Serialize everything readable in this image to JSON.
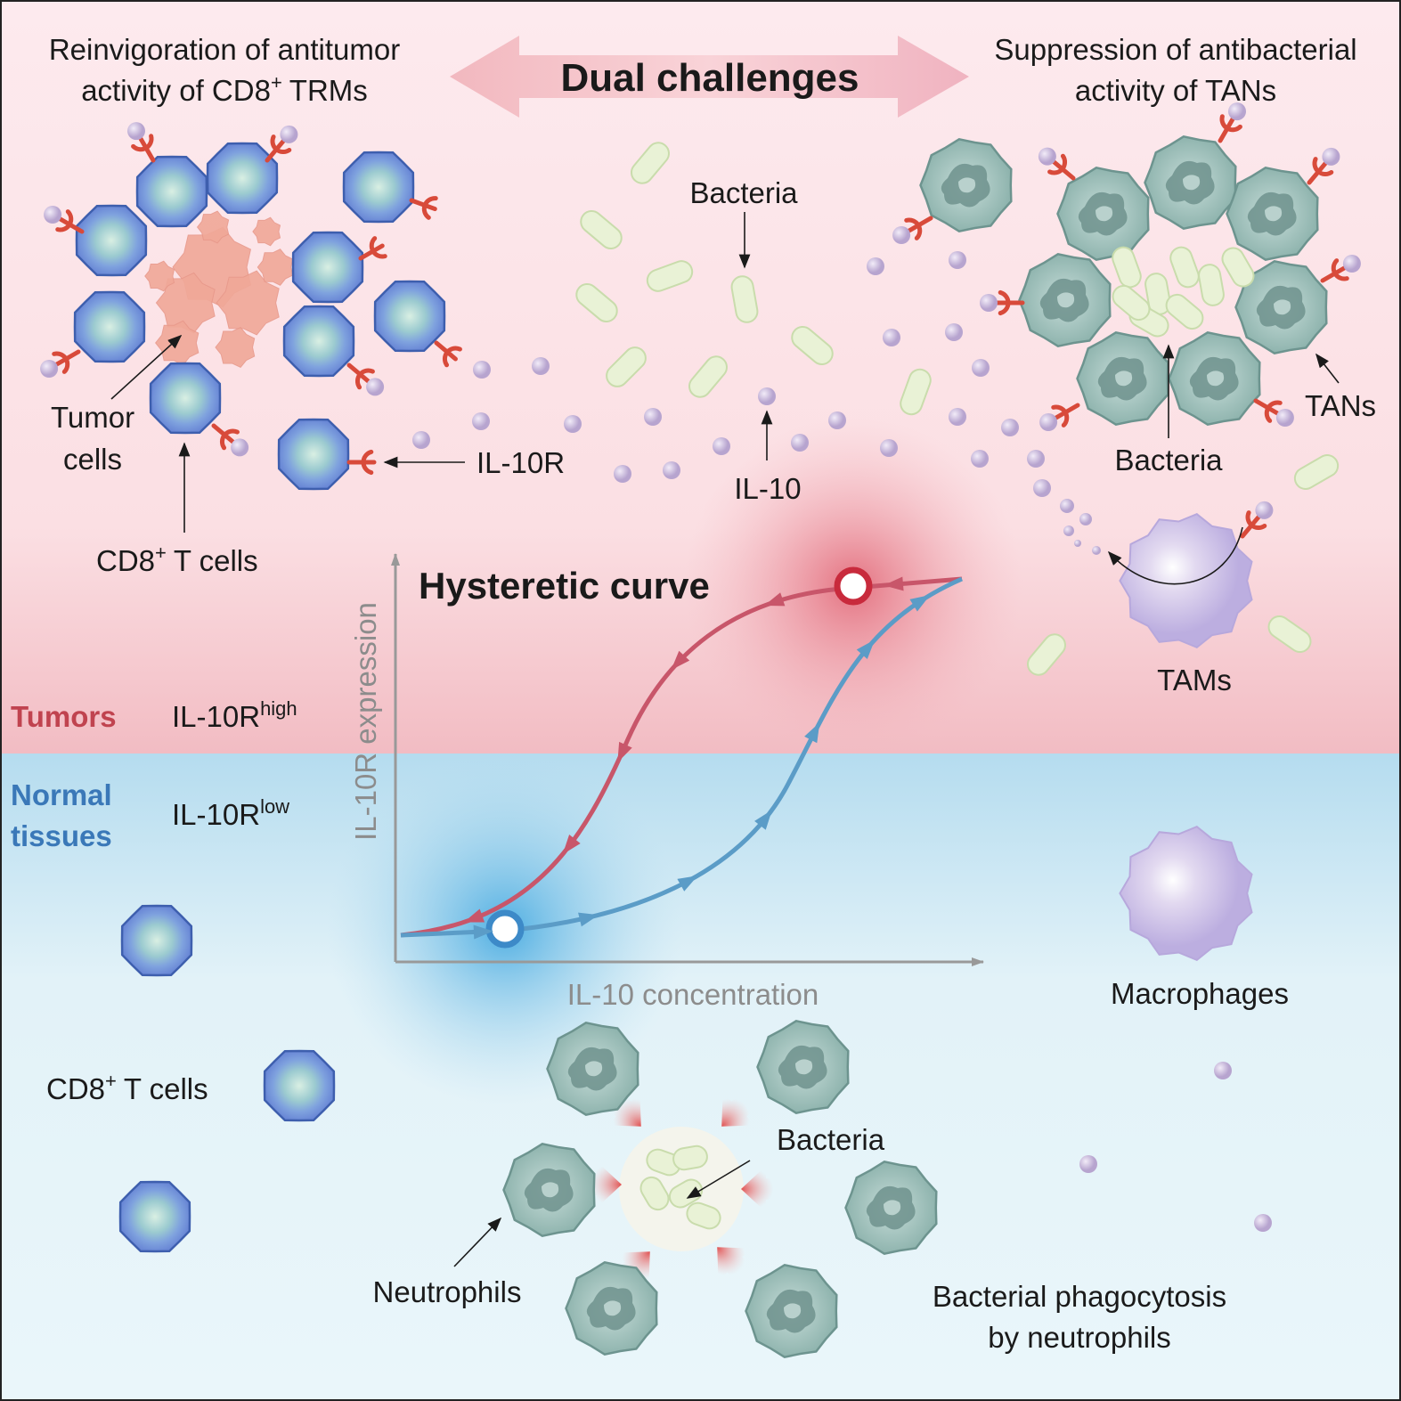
{
  "header": {
    "left_title": {
      "line1": "Reinvigoration of antitumor",
      "line2": "activity of CD8",
      "line2_sup": "+",
      "line2_end": "TRMs"
    },
    "center": "Dual challenges",
    "right_title": {
      "line1": "Suppression of antibacterial",
      "line2": "activity of TANs"
    }
  },
  "tumor_panel": {
    "bacteria": "Bacteria",
    "tumor_cells": {
      "line1": "Tumor",
      "line2": "cells"
    },
    "cd8_t_cells": {
      "base": "CD8",
      "sup": "+",
      "end": "T cells"
    },
    "il10r": "IL-10R",
    "il10": "IL-10",
    "cluster_bacteria": "Bacteria",
    "tans": "TANs",
    "tams": "TAMs"
  },
  "graph": {
    "title": "Hysteretic curve",
    "y_axis": "IL-10R expression",
    "x_axis": "IL-10 concentration"
  },
  "zones": {
    "tumors": {
      "label": "Tumors",
      "receptor": "IL-10R",
      "level": "high"
    },
    "normal": {
      "line1": "Normal",
      "line2": "tissues",
      "receptor": "IL-10R",
      "level": "low"
    }
  },
  "normal_panel": {
    "macrophages": "Macrophages",
    "cd8_t_cells": {
      "base": "CD8",
      "sup": "+",
      "end": "T cells"
    },
    "bacteria": "Bacteria",
    "neutrophils": "Neutrophils",
    "phagocytosis": {
      "line1": "Bacterial phagocytosis",
      "line2": "by neutrophils"
    }
  }
}
